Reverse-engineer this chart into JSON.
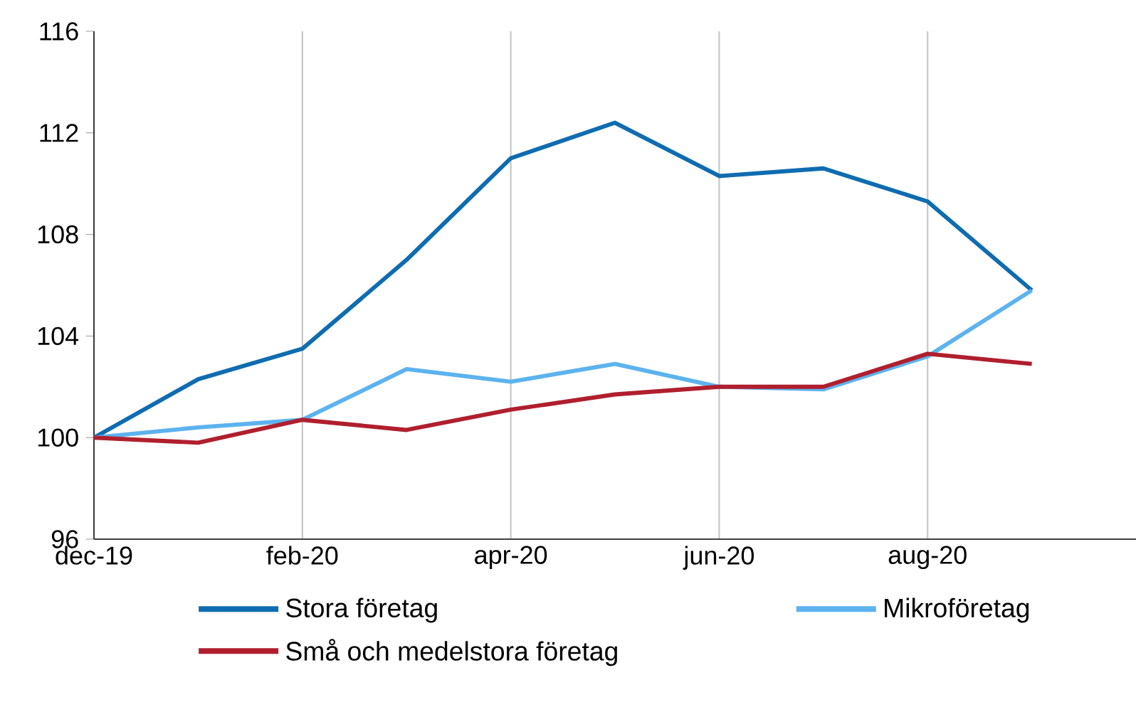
{
  "chart_data": {
    "type": "line",
    "categories": [
      "dec-19",
      null,
      "feb-20",
      null,
      "apr-20",
      null,
      "jun-20",
      null,
      "aug-20",
      null,
      null
    ],
    "series": [
      {
        "name": "Stora företag",
        "color": "#0f6cb0",
        "values": [
          100,
          102.3,
          103.5,
          107.0,
          111.0,
          112.4,
          110.3,
          110.6,
          109.3,
          105.8,
          null
        ]
      },
      {
        "name": "Mikroföretag",
        "color": "#5cb3ee",
        "values": [
          100,
          100.4,
          100.7,
          102.7,
          102.2,
          102.9,
          102.0,
          101.9,
          103.2,
          105.8,
          null
        ]
      },
      {
        "name": "Små och medelstora företag",
        "color": "#b01f2e",
        "values": [
          100,
          99.8,
          100.7,
          100.3,
          101.1,
          101.7,
          102.0,
          102.0,
          103.3,
          102.9,
          null
        ]
      }
    ],
    "ylim": [
      96,
      116
    ],
    "yticks": [
      96,
      100,
      104,
      108,
      112,
      116
    ],
    "grid": "x",
    "legend": "bottom",
    "marker": "none",
    "line_style": "solid"
  }
}
